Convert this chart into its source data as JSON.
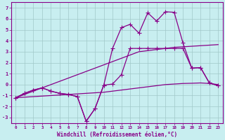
{
  "xlabel": "Windchill (Refroidissement éolien,°C)",
  "background_color": "#c8eef0",
  "grid_color": "#a0c8c8",
  "line_color": "#880088",
  "x_values": [
    0,
    1,
    2,
    3,
    4,
    5,
    6,
    7,
    8,
    9,
    10,
    11,
    12,
    13,
    14,
    15,
    16,
    17,
    18,
    19,
    20,
    21,
    22,
    23
  ],
  "line_linear_top": [
    -1.2,
    -0.9,
    -0.6,
    -0.3,
    0.0,
    0.3,
    0.6,
    0.9,
    1.2,
    1.5,
    1.8,
    2.1,
    2.4,
    2.7,
    3.0,
    3.1,
    3.2,
    3.3,
    3.4,
    3.45,
    3.5,
    3.55,
    3.6,
    3.65
  ],
  "line_linear_bot": [
    -1.2,
    -1.15,
    -1.1,
    -1.05,
    -1.0,
    -0.95,
    -0.9,
    -0.85,
    -0.8,
    -0.75,
    -0.7,
    -0.6,
    -0.5,
    -0.4,
    -0.3,
    -0.2,
    -0.1,
    0.0,
    0.05,
    0.1,
    0.12,
    0.15,
    0.1,
    0.0
  ],
  "line_wiggly_top": [
    -1.2,
    -0.8,
    -0.5,
    -0.3,
    -0.6,
    -0.8,
    -0.9,
    -1.1,
    -3.35,
    -2.2,
    -0.05,
    3.3,
    5.2,
    5.5,
    4.7,
    6.55,
    5.8,
    6.65,
    6.6,
    3.8,
    1.5,
    1.55,
    0.15,
    -0.1
  ],
  "line_wiggly_bot": [
    -1.2,
    -0.8,
    -0.5,
    -0.3,
    -0.6,
    -0.8,
    -0.9,
    -1.1,
    -3.35,
    -2.2,
    -0.05,
    0.05,
    0.9,
    3.3,
    3.3,
    3.3,
    3.3,
    3.3,
    3.3,
    3.3,
    1.5,
    1.55,
    0.15,
    -0.1
  ],
  "ylim": [
    -3.5,
    7.5
  ],
  "xlim": [
    -0.5,
    23.5
  ]
}
